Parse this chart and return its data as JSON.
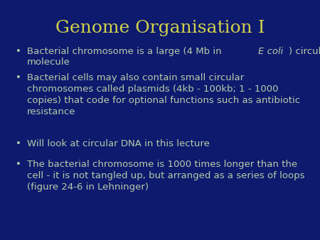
{
  "title": "Genome Organisation I",
  "title_color": "#d4d44a",
  "background_color": "#0d1a6e",
  "text_color": "#b8ccaa",
  "bullet_color": "#b8ccaa",
  "title_fontsize": 18,
  "bullet_fontsize": 9.5,
  "figsize": [
    4.5,
    3.38
  ],
  "dpi": 100,
  "bullet1_pre": "Bacterial chromosome is a large (4 Mb in ",
  "bullet1_italic": "E coli",
  "bullet1_post": ") circular",
  "bullet1_line2": "molecule",
  "bullet2": "Bacterial cells may also contain small circular\nchromosomes called plasmids (4kb - 100kb; 1 - 1000\ncopies) that code for optional functions such as antibiotic\nresistance",
  "bullet3": "Will look at circular DNA in this lecture",
  "bullet4": "The bacterial chromosome is 1000 times longer than the\ncell - it is not tangled up, but arranged as a series of loops\n(figure 24-6 in Lehninger)"
}
